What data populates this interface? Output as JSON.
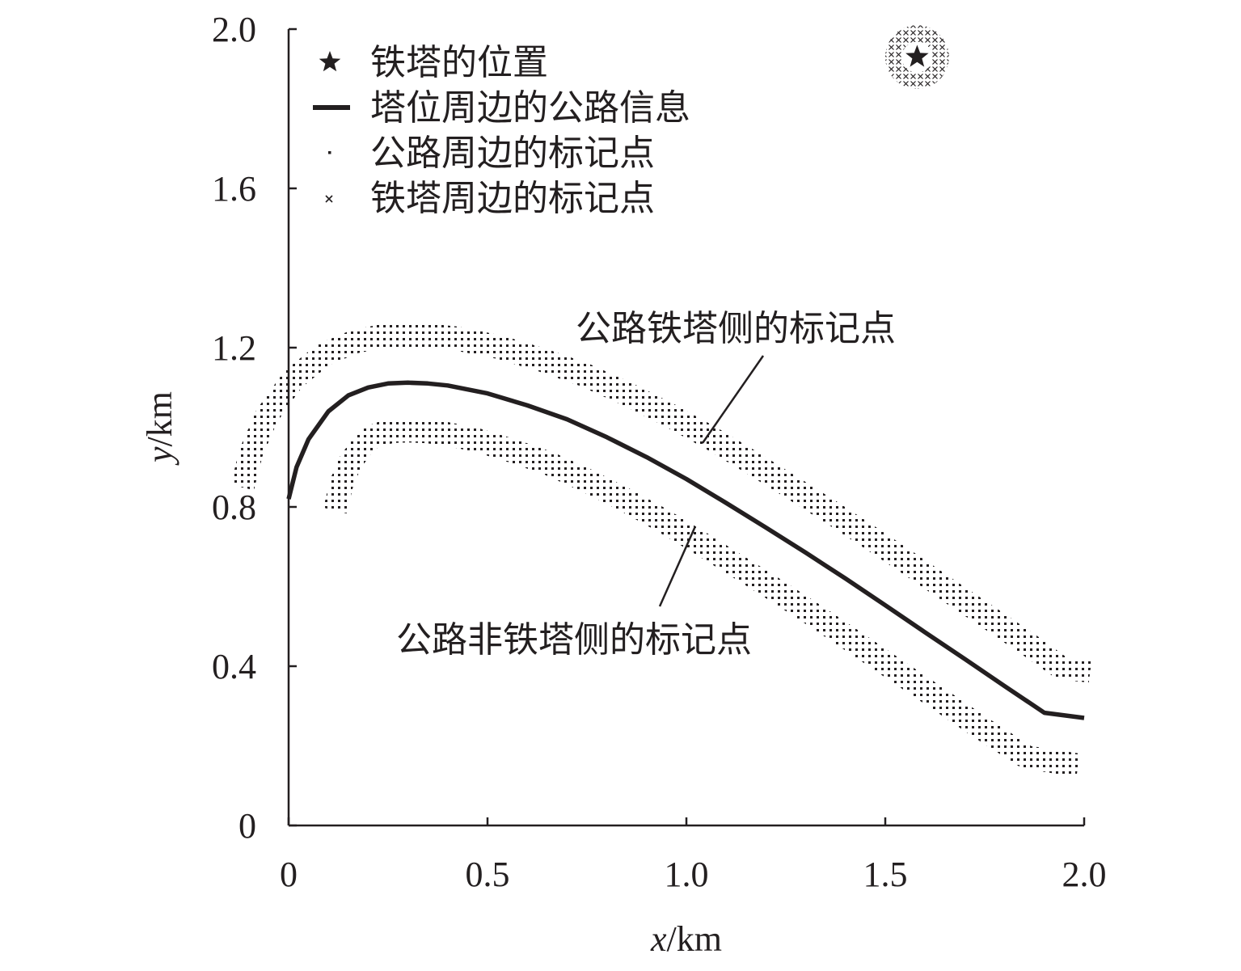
{
  "chart_data": {
    "type": "line",
    "xlabel_var": "x",
    "xlabel_unit": "/km",
    "ylabel_var": "y",
    "ylabel_unit": "/km",
    "xlim": [
      0,
      2.0
    ],
    "ylim": [
      0,
      2.0
    ],
    "xticks": [
      {
        "value": 0,
        "label": "0"
      },
      {
        "value": 0.5,
        "label": "0.5"
      },
      {
        "value": 1.0,
        "label": "1.0"
      },
      {
        "value": 1.5,
        "label": "1.5"
      },
      {
        "value": 2.0,
        "label": "2.0"
      }
    ],
    "yticks": [
      {
        "value": 0,
        "label": "0"
      },
      {
        "value": 0.4,
        "label": "0.4"
      },
      {
        "value": 0.8,
        "label": "0.8"
      },
      {
        "value": 1.2,
        "label": "1.2"
      },
      {
        "value": 1.6,
        "label": "1.6"
      },
      {
        "value": 2.0,
        "label": "2.0"
      }
    ],
    "grid": false,
    "legend_position": "top-left",
    "legend": [
      {
        "marker": "star",
        "label": "铁塔的位置"
      },
      {
        "marker": "line",
        "label": "塔位周边的公路信息"
      },
      {
        "marker": "dot",
        "label": "公路周边的标记点"
      },
      {
        "marker": "cross",
        "label": "铁塔周边的标记点"
      }
    ],
    "tower": {
      "x": 1.58,
      "y": 1.93,
      "marker_radius": 0.08
    },
    "road": {
      "x": [
        0.0,
        0.02,
        0.05,
        0.1,
        0.15,
        0.2,
        0.25,
        0.3,
        0.35,
        0.4,
        0.5,
        0.6,
        0.7,
        0.8,
        0.9,
        1.0,
        1.1,
        1.2,
        1.3,
        1.4,
        1.5,
        1.6,
        1.7,
        1.8,
        1.9,
        2.0
      ],
      "y": [
        0.82,
        0.9,
        0.97,
        1.04,
        1.08,
        1.1,
        1.11,
        1.112,
        1.11,
        1.105,
        1.085,
        1.055,
        1.02,
        0.975,
        0.925,
        0.87,
        0.81,
        0.748,
        0.685,
        0.62,
        0.553,
        0.485,
        0.418,
        0.35,
        0.283,
        0.27
      ]
    },
    "band_offset": 0.09,
    "band_width": 0.06,
    "annotations": [
      {
        "text": "公路铁塔侧的标记点",
        "x": 1.04,
        "y": 0.965,
        "side": "upper"
      },
      {
        "text": "公路非铁塔侧的标记点",
        "x": 1.02,
        "y": 0.765,
        "side": "lower"
      }
    ]
  }
}
